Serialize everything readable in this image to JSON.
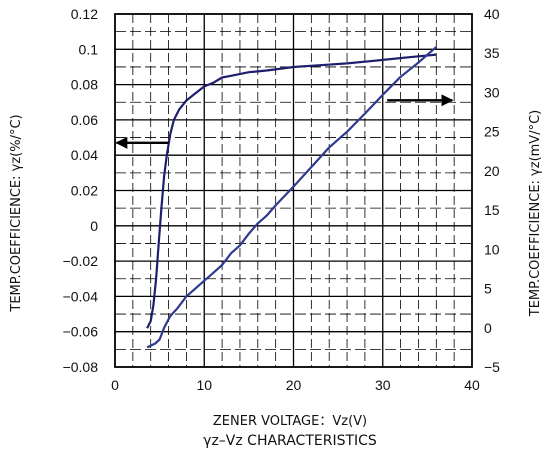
{
  "chart_data": {
    "type": "line",
    "title": "γz–Vz CHARACTERISTICS",
    "xlabel": "ZENER VOLTAGE：Vz(V)",
    "ylabel_left": "TEMP.COEFFICIENCE: γz(%/°C)",
    "ylabel_right": "TEMP.COEFFICIENCE: γz(mV/°C)",
    "xlim": [
      0,
      40
    ],
    "ylim_left": [
      -0.08,
      0.12
    ],
    "ylim_right": [
      -5,
      40
    ],
    "x_ticks": [
      "0",
      "10",
      "20",
      "30",
      "40"
    ],
    "y_left_ticks": [
      "−0.08",
      "−0.06",
      "−0.04",
      "−0.02",
      "0",
      "0.02",
      "0.04",
      "0.06",
      "0.08",
      "0.1",
      "0.12"
    ],
    "y_right_ticks": [
      "−5",
      "0",
      "5",
      "10",
      "15",
      "20",
      "25",
      "30",
      "35",
      "40"
    ],
    "grid": true,
    "series": [
      {
        "axis": "left",
        "color": "#1e1e6e",
        "points": [
          [
            3.6,
            -0.058
          ],
          [
            4.0,
            -0.054
          ],
          [
            4.3,
            -0.045
          ],
          [
            4.6,
            -0.03
          ],
          [
            4.9,
            -0.01
          ],
          [
            5.2,
            0.01
          ],
          [
            5.5,
            0.028
          ],
          [
            5.8,
            0.04
          ],
          [
            6.2,
            0.052
          ],
          [
            6.6,
            0.06
          ],
          [
            7.2,
            0.066
          ],
          [
            8.0,
            0.071
          ],
          [
            9.0,
            0.075
          ],
          [
            10.0,
            0.079
          ],
          [
            11.0,
            0.081
          ],
          [
            12.0,
            0.084
          ],
          [
            13.0,
            0.085
          ],
          [
            15.0,
            0.087
          ],
          [
            17.0,
            0.088
          ],
          [
            20.0,
            0.09
          ],
          [
            23.0,
            0.091
          ],
          [
            26.0,
            0.092
          ],
          [
            28.0,
            0.093
          ],
          [
            30.0,
            0.094
          ],
          [
            33.0,
            0.0955
          ],
          [
            36.0,
            0.097
          ]
        ]
      },
      {
        "axis": "right",
        "color": "#2e3a8e",
        "points": [
          [
            3.6,
            -2.5
          ],
          [
            4.5,
            -2.0
          ],
          [
            5.0,
            -1.5
          ],
          [
            5.5,
            0.0
          ],
          [
            6.2,
            1.5
          ],
          [
            7.0,
            2.5
          ],
          [
            8.0,
            4.0
          ],
          [
            9.0,
            5.0
          ],
          [
            10.0,
            6.0
          ],
          [
            11.0,
            7.0
          ],
          [
            12.0,
            8.0
          ],
          [
            13.0,
            9.5
          ],
          [
            14.0,
            10.5
          ],
          [
            15.0,
            12.0
          ],
          [
            16.0,
            13.3
          ],
          [
            17.0,
            14.3
          ],
          [
            18.0,
            15.6
          ],
          [
            20.0,
            18.0
          ],
          [
            22.0,
            20.5
          ],
          [
            24.0,
            23.0
          ],
          [
            26.0,
            25.0
          ],
          [
            28.0,
            27.3
          ],
          [
            30.0,
            29.7
          ],
          [
            32.0,
            32.0
          ],
          [
            34.0,
            33.8
          ],
          [
            36.0,
            35.8
          ]
        ]
      }
    ],
    "annotations": [
      {
        "type": "arrow",
        "direction": "left",
        "at": [
          6.0,
          0.047
        ],
        "meaning": "left-axis curve"
      },
      {
        "type": "arrow",
        "direction": "right",
        "at": [
          30.5,
          29.0
        ],
        "meaning": "right-axis curve"
      }
    ]
  }
}
